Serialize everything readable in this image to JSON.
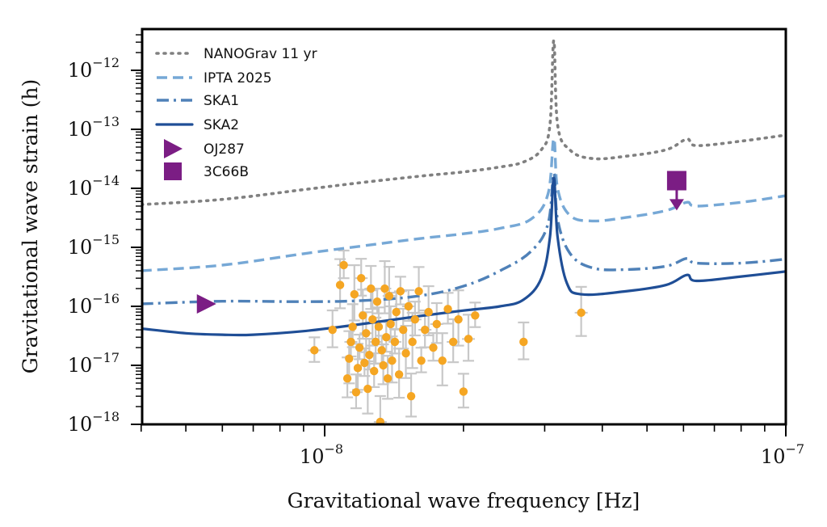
{
  "chart_data": {
    "type": "line",
    "x_scale": "log",
    "y_scale": "log",
    "xlim": [
      4e-09,
      1e-07
    ],
    "ylim": [
      1e-18,
      5e-12
    ],
    "xlabel": "Gravitational wave frequency [Hz]",
    "ylabel": "Gravitational wave strain (h)",
    "x_ticks": [
      {
        "value": 1e-08,
        "base": "10",
        "exp": "−8"
      },
      {
        "value": 1e-07,
        "base": "10",
        "exp": "−7"
      }
    ],
    "y_ticks": [
      {
        "value": 1e-18,
        "base": "10",
        "exp": "−18"
      },
      {
        "value": 1e-17,
        "base": "10",
        "exp": "−17"
      },
      {
        "value": 1e-16,
        "base": "10",
        "exp": "−16"
      },
      {
        "value": 1e-15,
        "base": "10",
        "exp": "−15"
      },
      {
        "value": 1e-14,
        "base": "10",
        "exp": "−14"
      },
      {
        "value": 1e-13,
        "base": "10",
        "exp": "−13"
      },
      {
        "value": 1e-12,
        "base": "10",
        "exp": "−12"
      }
    ],
    "grid": false,
    "legend_position": "top-left",
    "series": [
      {
        "name": "NANOGrav 11 yr",
        "style": "dotted",
        "color": "#808080",
        "points": [
          [
            4e-09,
            5.3e-15
          ],
          [
            6e-09,
            6.5e-15
          ],
          [
            9e-09,
            9.5e-15
          ],
          [
            1.2e-08,
            1.25e-14
          ],
          [
            1.6e-08,
            1.6e-14
          ],
          [
            2e-08,
            1.9e-14
          ],
          [
            2.4e-08,
            2.3e-14
          ],
          [
            2.7e-08,
            2.8e-14
          ],
          [
            2.95e-08,
            4.5e-14
          ],
          [
            3.08e-08,
            1.2e-13
          ],
          [
            3.14e-08,
            3.2e-12
          ],
          [
            3.2e-08,
            1.2e-13
          ],
          [
            3.4e-08,
            4.5e-14
          ],
          [
            3.8e-08,
            3.2e-14
          ],
          [
            4.5e-08,
            3.5e-14
          ],
          [
            5.5e-08,
            4.5e-14
          ],
          [
            6.1e-08,
            6.8e-14
          ],
          [
            6.4e-08,
            5.3e-14
          ],
          [
            8e-08,
            6.3e-14
          ],
          [
            1e-07,
            8e-14
          ]
        ]
      },
      {
        "name": "IPTA 2025",
        "style": "dashed",
        "color": "#76a8d6",
        "points": [
          [
            4e-09,
            4e-16
          ],
          [
            6e-09,
            5e-16
          ],
          [
            9e-09,
            7.8e-16
          ],
          [
            1.2e-08,
            1.05e-15
          ],
          [
            1.6e-08,
            1.4e-15
          ],
          [
            2e-08,
            1.7e-15
          ],
          [
            2.4e-08,
            2.1e-15
          ],
          [
            2.8e-08,
            3e-15
          ],
          [
            3.05e-08,
            8e-15
          ],
          [
            3.14e-08,
            7e-14
          ],
          [
            3.2e-08,
            1e-14
          ],
          [
            3.4e-08,
            3.5e-15
          ],
          [
            3.8e-08,
            2.8e-15
          ],
          [
            4.5e-08,
            3.2e-15
          ],
          [
            5.5e-08,
            4.2e-15
          ],
          [
            6.1e-08,
            5.8e-15
          ],
          [
            6.4e-08,
            5e-15
          ],
          [
            8e-08,
            5.8e-15
          ],
          [
            1e-07,
            7.5e-15
          ]
        ]
      },
      {
        "name": "SKA1",
        "style": "dashdot",
        "color": "#4f81b8",
        "points": [
          [
            4e-09,
            1.1e-16
          ],
          [
            6e-09,
            1.22e-16
          ],
          [
            9e-09,
            1.2e-16
          ],
          [
            1.2e-08,
            1.25e-16
          ],
          [
            1.6e-08,
            1.5e-16
          ],
          [
            2e-08,
            2.2e-16
          ],
          [
            2.4e-08,
            4e-16
          ],
          [
            2.8e-08,
            8.5e-16
          ],
          [
            3.05e-08,
            2.5e-15
          ],
          [
            3.14e-08,
            1.8e-14
          ],
          [
            3.2e-08,
            3e-15
          ],
          [
            3.4e-08,
            8e-16
          ],
          [
            3.8e-08,
            4.5e-16
          ],
          [
            4.5e-08,
            4.2e-16
          ],
          [
            5.5e-08,
            4.8e-16
          ],
          [
            6.1e-08,
            6.5e-16
          ],
          [
            6.4e-08,
            5.4e-16
          ],
          [
            8e-08,
            5.4e-16
          ],
          [
            1e-07,
            6.3e-16
          ]
        ]
      },
      {
        "name": "SKA2",
        "style": "solid",
        "color": "#1f4e96",
        "points": [
          [
            4e-09,
            4.2e-17
          ],
          [
            5e-09,
            3.5e-17
          ],
          [
            6e-09,
            3.3e-17
          ],
          [
            7e-09,
            3.3e-17
          ],
          [
            9e-09,
            3.8e-17
          ],
          [
            1.2e-08,
            5e-17
          ],
          [
            1.6e-08,
            6.8e-17
          ],
          [
            2e-08,
            8.5e-17
          ],
          [
            2.4e-08,
            1e-16
          ],
          [
            2.7e-08,
            1.3e-16
          ],
          [
            2.95e-08,
            3e-16
          ],
          [
            3.08e-08,
            1.5e-15
          ],
          [
            3.14e-08,
            1.5e-14
          ],
          [
            3.2e-08,
            1.5e-15
          ],
          [
            3.35e-08,
            2.5e-16
          ],
          [
            3.6e-08,
            1.6e-16
          ],
          [
            4.5e-08,
            1.8e-16
          ],
          [
            5.5e-08,
            2.3e-16
          ],
          [
            6.1e-08,
            3.4e-16
          ],
          [
            6.4e-08,
            2.7e-16
          ],
          [
            8e-08,
            3.2e-16
          ],
          [
            1e-07,
            3.9e-16
          ]
        ]
      }
    ],
    "markers": [
      {
        "name": "OJ287",
        "shape": "triangle-right",
        "color": "#7b1d84",
        "x": 5.5e-09,
        "y": 1.1e-16
      },
      {
        "name": "3C66B",
        "shape": "square",
        "color": "#7b1d84",
        "x": 5.8e-08,
        "y": 1.35e-14,
        "upper_limit_to": 4.5e-15
      }
    ],
    "scatter": {
      "color": "#f5a623",
      "errorbar_color": "#c8c8c8",
      "points": [
        {
          "x": 9.5e-09,
          "y": 1.8e-17
        },
        {
          "x": 1.04e-08,
          "y": 4e-17
        },
        {
          "x": 1.08e-08,
          "y": 2.3e-16
        },
        {
          "x": 1.1e-08,
          "y": 5e-16
        },
        {
          "x": 1.12e-08,
          "y": 6e-18
        },
        {
          "x": 1.13e-08,
          "y": 1.3e-17
        },
        {
          "x": 1.14e-08,
          "y": 2.5e-17
        },
        {
          "x": 1.15e-08,
          "y": 4.5e-17
        },
        {
          "x": 1.16e-08,
          "y": 1.6e-16
        },
        {
          "x": 1.17e-08,
          "y": 3.5e-18
        },
        {
          "x": 1.18e-08,
          "y": 9e-18
        },
        {
          "x": 1.19e-08,
          "y": 2e-17
        },
        {
          "x": 1.2e-08,
          "y": 3e-16
        },
        {
          "x": 1.21e-08,
          "y": 7e-17
        },
        {
          "x": 1.22e-08,
          "y": 1.1e-17
        },
        {
          "x": 1.23e-08,
          "y": 3.5e-17
        },
        {
          "x": 1.24e-08,
          "y": 4e-18
        },
        {
          "x": 1.25e-08,
          "y": 1.5e-17
        },
        {
          "x": 1.26e-08,
          "y": 2e-16
        },
        {
          "x": 1.27e-08,
          "y": 6e-17
        },
        {
          "x": 1.28e-08,
          "y": 8e-18
        },
        {
          "x": 1.29e-08,
          "y": 2.5e-17
        },
        {
          "x": 1.3e-08,
          "y": 1.2e-16
        },
        {
          "x": 1.31e-08,
          "y": 4.5e-17
        },
        {
          "x": 1.32e-08,
          "y": 1.1e-18
        },
        {
          "x": 1.33e-08,
          "y": 1.8e-17
        },
        {
          "x": 1.34e-08,
          "y": 1e-17
        },
        {
          "x": 1.35e-08,
          "y": 2e-16
        },
        {
          "x": 1.36e-08,
          "y": 3e-17
        },
        {
          "x": 1.37e-08,
          "y": 6e-18
        },
        {
          "x": 1.38e-08,
          "y": 1.5e-16
        },
        {
          "x": 1.39e-08,
          "y": 5e-17
        },
        {
          "x": 1.4e-08,
          "y": 1.2e-17
        },
        {
          "x": 1.42e-08,
          "y": 2.5e-17
        },
        {
          "x": 1.43e-08,
          "y": 8e-17
        },
        {
          "x": 1.45e-08,
          "y": 7e-18
        },
        {
          "x": 1.46e-08,
          "y": 1.8e-16
        },
        {
          "x": 1.48e-08,
          "y": 4e-17
        },
        {
          "x": 1.5e-08,
          "y": 1.6e-17
        },
        {
          "x": 1.52e-08,
          "y": 1e-16
        },
        {
          "x": 1.54e-08,
          "y": 3e-18
        },
        {
          "x": 1.55e-08,
          "y": 2.5e-17
        },
        {
          "x": 1.57e-08,
          "y": 6e-17
        },
        {
          "x": 1.6e-08,
          "y": 1.8e-16
        },
        {
          "x": 1.62e-08,
          "y": 1.2e-17
        },
        {
          "x": 1.65e-08,
          "y": 4e-17
        },
        {
          "x": 1.68e-08,
          "y": 8e-17
        },
        {
          "x": 1.72e-08,
          "y": 2e-17
        },
        {
          "x": 1.75e-08,
          "y": 5e-17
        },
        {
          "x": 1.8e-08,
          "y": 1.2e-17
        },
        {
          "x": 1.85e-08,
          "y": 9e-17
        },
        {
          "x": 1.9e-08,
          "y": 2.5e-17
        },
        {
          "x": 1.95e-08,
          "y": 6e-17
        },
        {
          "x": 2e-08,
          "y": 3.6e-18
        },
        {
          "x": 2.05e-08,
          "y": 2.8e-17
        },
        {
          "x": 2.12e-08,
          "y": 7e-17
        },
        {
          "x": 2.7e-08,
          "y": 2.5e-17
        },
        {
          "x": 3.6e-08,
          "y": 7.8e-17
        }
      ]
    }
  }
}
